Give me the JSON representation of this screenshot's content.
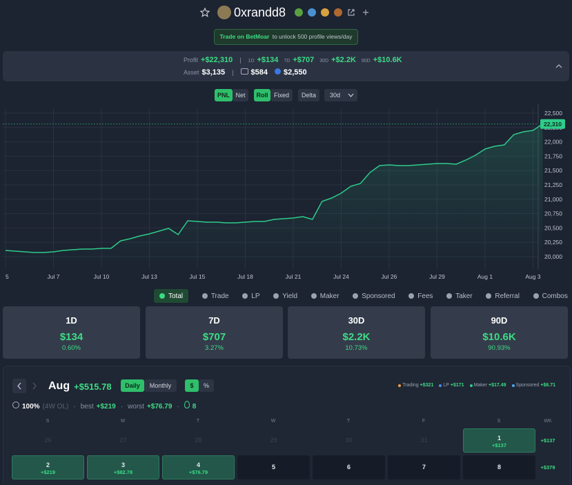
{
  "header": {
    "username": "0xrandd8"
  },
  "banner": {
    "link": "Trade on BetMoar",
    "text": "to unlock 500 profile views/day"
  },
  "stats": {
    "profit_label": "Profit",
    "profit": "+$22,310",
    "periods": [
      {
        "label": "1D",
        "value": "+$134"
      },
      {
        "label": "7D",
        "value": "+$707"
      },
      {
        "label": "30D",
        "value": "+$2.2K"
      },
      {
        "label": "90D",
        "value": "+$10.6K"
      }
    ],
    "asset_label": "Asset",
    "asset": "$3,135",
    "wallet": "$584",
    "staked": "$2,550"
  },
  "controls": {
    "mode": [
      "PNL",
      "Net"
    ],
    "window": [
      "Roll",
      "Fixed"
    ],
    "delta": "Delta",
    "range": "30d"
  },
  "chart_data": {
    "type": "line",
    "color": "#2ecc8a",
    "grid": true,
    "categories": [
      "5",
      null,
      null,
      null,
      null,
      "Jul 7",
      null,
      null,
      null,
      null,
      "Jul 10",
      null,
      null,
      null,
      null,
      "Jul 13",
      null,
      null,
      null,
      null,
      "Jul 15",
      null,
      null,
      null,
      null,
      "Jul 18",
      null,
      null,
      null,
      null,
      "Jul 21",
      null,
      null,
      null,
      null,
      "Jul 24",
      null,
      null,
      null,
      null,
      "Jul 26",
      null,
      null,
      null,
      null,
      "Jul 29",
      null,
      null,
      null,
      null,
      "Aug 1",
      null,
      null,
      null,
      null,
      "Aug 3",
      null
    ],
    "values": [
      20108,
      20096,
      20084,
      20072,
      20072,
      20084,
      20108,
      20120,
      20132,
      20132,
      20144,
      20144,
      20276,
      20313,
      20361,
      20397,
      20445,
      20493,
      20385,
      20625,
      20613,
      20601,
      20601,
      20589,
      20589,
      20601,
      20613,
      20613,
      20649,
      20661,
      20673,
      20697,
      20649,
      20962,
      21022,
      21106,
      21226,
      21274,
      21466,
      21587,
      21599,
      21587,
      21587,
      21599,
      21611,
      21623,
      21623,
      21611,
      21683,
      21767,
      21875,
      21923,
      21947,
      22127,
      22175,
      22199,
      22310
    ],
    "ylim": [
      19784,
      22584
    ],
    "yticks": [
      {
        "value": 20000,
        "label": "20,000"
      },
      {
        "value": 20250,
        "label": "20,250"
      },
      {
        "value": 20500,
        "label": "20,500"
      },
      {
        "value": 20750,
        "label": "20,750"
      },
      {
        "value": 21000,
        "label": "21,000"
      },
      {
        "value": 21250,
        "label": "21,250"
      },
      {
        "value": 21500,
        "label": "21,500"
      },
      {
        "value": 21750,
        "label": "21,750"
      },
      {
        "value": 22000,
        "label": "22,000"
      },
      {
        "value": 22250,
        "label": "22,250"
      },
      {
        "value": 22500,
        "label": "22,500"
      }
    ],
    "reference_line": {
      "value": 22310,
      "label": "22,310"
    }
  },
  "filters": [
    "Total",
    "Trade",
    "LP",
    "Yield",
    "Maker",
    "Sponsored",
    "Fees",
    "Taker",
    "Referral",
    "Combos"
  ],
  "cards": [
    {
      "period": "1D",
      "value": "$134",
      "change": "0.60%"
    },
    {
      "period": "7D",
      "value": "$707",
      "change": "3.27%"
    },
    {
      "period": "30D",
      "value": "$2.2K",
      "change": "10.73%"
    },
    {
      "period": "90D",
      "value": "$10.6K",
      "change": "90.93%"
    }
  ],
  "calendar": {
    "month": "Aug",
    "total": "+$515.78",
    "views": [
      "Daily",
      "Monthly"
    ],
    "units": [
      "$",
      "%"
    ],
    "legend": [
      {
        "name": "Trading",
        "value": "+$321",
        "color": "#f0a040"
      },
      {
        "name": "LP",
        "value": "+$171",
        "color": "#4a8ff0"
      },
      {
        "name": "Maker",
        "value": "+$17.49",
        "color": "#2ecc8a"
      },
      {
        "name": "Sponsored",
        "value": "+$6.71",
        "color": "#4aa8f0"
      }
    ],
    "streak": {
      "rate": "100%",
      "note": "(4W OL)",
      "best_label": "best",
      "best": "+$219",
      "worst_label": "worst",
      "worst": "+$76.79",
      "fire": "8"
    },
    "weekdays": [
      "S",
      "M",
      "T",
      "W",
      "T",
      "F",
      "S",
      "WK"
    ],
    "weeks": [
      {
        "days": [
          {
            "day": "26",
            "outside": true
          },
          {
            "day": "27",
            "outside": true
          },
          {
            "day": "28",
            "outside": true
          },
          {
            "day": "29",
            "outside": true
          },
          {
            "day": "30",
            "outside": true
          },
          {
            "day": "31",
            "outside": true
          },
          {
            "day": "1",
            "pnl": "+$137"
          }
        ],
        "total": "+$137"
      },
      {
        "days": [
          {
            "day": "2",
            "pnl": "+$219"
          },
          {
            "day": "3",
            "pnl": "+$82.78"
          },
          {
            "day": "4",
            "pnl": "+$76.79"
          },
          {
            "day": "5"
          },
          {
            "day": "6"
          },
          {
            "day": "7"
          },
          {
            "day": "8"
          }
        ],
        "total": "+$379"
      }
    ]
  }
}
